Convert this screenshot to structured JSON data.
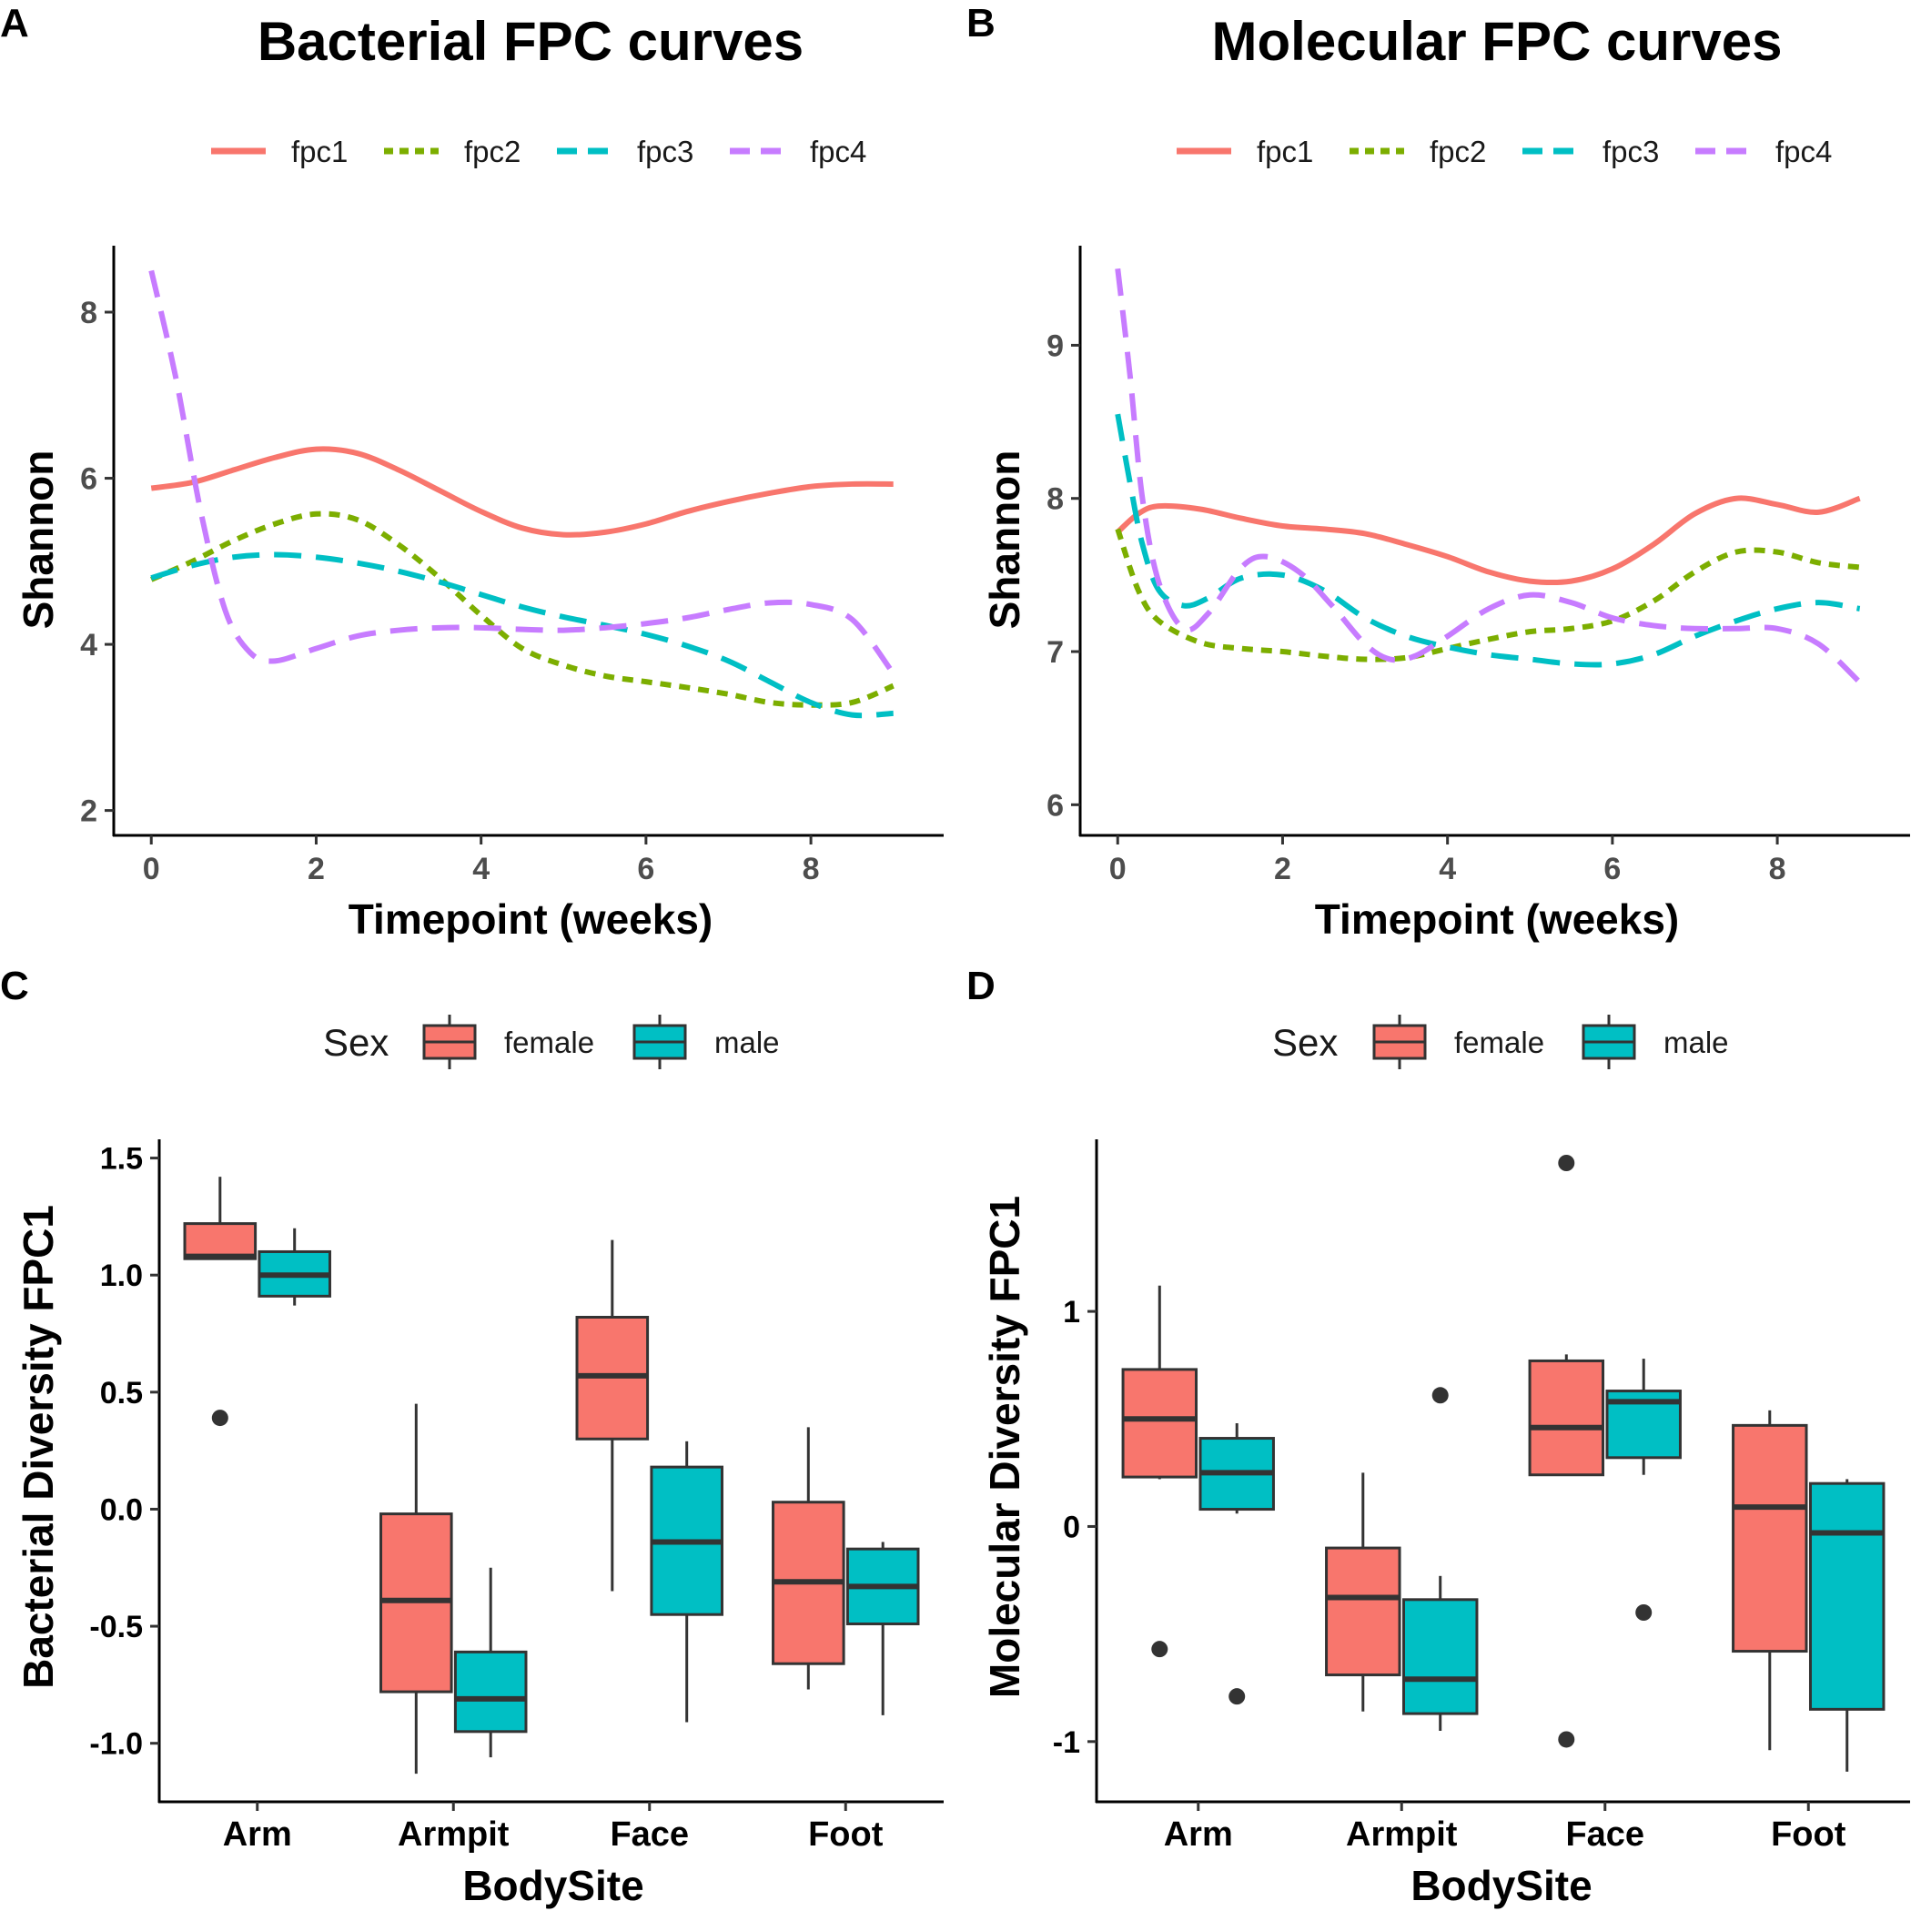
{
  "chart_data": [
    {
      "panel": "A",
      "type": "line",
      "title": "Bacterial FPC curves",
      "xlabel": "Timepoint (weeks)",
      "ylabel": "Shannon",
      "xlim": [
        -0.4,
        9.5
      ],
      "ylim": [
        1.7,
        8.8
      ],
      "xticks": [
        0,
        2,
        4,
        6,
        8
      ],
      "yticks": [
        2,
        4,
        6,
        8
      ],
      "grid": false,
      "legend_position": "top",
      "series": [
        {
          "name": "fpc1",
          "color": "#F8766D",
          "dash": "solid",
          "x": [
            0,
            0.5,
            1,
            1.5,
            2,
            2.5,
            3,
            3.5,
            4,
            4.5,
            5,
            5.5,
            6,
            6.5,
            7,
            7.5,
            8,
            8.5,
            9
          ],
          "y": [
            5.88,
            5.95,
            6.1,
            6.25,
            6.35,
            6.3,
            6.1,
            5.85,
            5.6,
            5.4,
            5.32,
            5.35,
            5.45,
            5.6,
            5.72,
            5.82,
            5.9,
            5.93,
            5.93
          ]
        },
        {
          "name": "fpc2",
          "color": "#7CAE00",
          "dash": "dotted",
          "x": [
            0,
            0.5,
            1,
            1.5,
            2,
            2.5,
            3,
            3.5,
            4,
            4.5,
            5,
            5.5,
            6,
            6.5,
            7,
            7.5,
            8,
            8.5,
            9
          ],
          "y": [
            4.78,
            5.0,
            5.25,
            5.45,
            5.57,
            5.5,
            5.2,
            4.8,
            4.35,
            3.95,
            3.75,
            3.62,
            3.55,
            3.48,
            3.4,
            3.3,
            3.27,
            3.3,
            3.5
          ]
        },
        {
          "name": "fpc3",
          "color": "#00BFC4",
          "dash": "dashed",
          "x": [
            0,
            0.5,
            1,
            1.5,
            2,
            2.5,
            3,
            3.5,
            4,
            4.5,
            5,
            5.5,
            6,
            6.5,
            7,
            7.5,
            8,
            8.5,
            9
          ],
          "y": [
            4.8,
            4.95,
            5.05,
            5.08,
            5.05,
            4.98,
            4.88,
            4.75,
            4.6,
            4.45,
            4.33,
            4.23,
            4.12,
            3.98,
            3.8,
            3.55,
            3.3,
            3.15,
            3.17
          ]
        },
        {
          "name": "fpc4",
          "color": "#C77CFF",
          "dash": "dashed",
          "x": [
            0,
            0.3,
            0.6,
            0.9,
            1.2,
            1.5,
            2,
            2.5,
            3,
            3.5,
            4,
            4.5,
            5,
            5.5,
            6,
            6.5,
            7,
            7.5,
            8,
            8.5,
            9
          ],
          "y": [
            8.5,
            7.2,
            5.6,
            4.4,
            3.9,
            3.8,
            3.95,
            4.1,
            4.17,
            4.2,
            4.2,
            4.18,
            4.17,
            4.2,
            4.25,
            4.32,
            4.42,
            4.5,
            4.48,
            4.3,
            3.65
          ]
        }
      ]
    },
    {
      "panel": "B",
      "type": "line",
      "title": "Molecular FPC curves",
      "xlabel": "Timepoint (weeks)",
      "ylabel": "Shannon",
      "xlim": [
        -0.4,
        9.5
      ],
      "ylim": [
        5.8,
        9.65
      ],
      "xticks": [
        0,
        2,
        4,
        6,
        8
      ],
      "yticks": [
        6,
        7,
        8,
        9
      ],
      "grid": false,
      "legend_position": "top",
      "series": [
        {
          "name": "fpc1",
          "color": "#F8766D",
          "dash": "solid",
          "x": [
            0,
            0.25,
            0.5,
            1,
            1.5,
            2,
            2.5,
            3,
            3.5,
            4,
            4.5,
            5,
            5.5,
            6,
            6.5,
            7,
            7.5,
            8,
            8.5,
            9
          ],
          "y": [
            7.78,
            7.9,
            7.95,
            7.93,
            7.87,
            7.82,
            7.8,
            7.77,
            7.7,
            7.62,
            7.52,
            7.46,
            7.46,
            7.54,
            7.7,
            7.9,
            8.0,
            7.96,
            7.91,
            8.0
          ]
        },
        {
          "name": "fpc2",
          "color": "#7CAE00",
          "dash": "dotted",
          "x": [
            0,
            0.25,
            0.5,
            1,
            1.5,
            2,
            2.5,
            3,
            3.5,
            4,
            4.5,
            5,
            5.5,
            6,
            6.5,
            7,
            7.5,
            8,
            8.5,
            9
          ],
          "y": [
            7.8,
            7.4,
            7.2,
            7.06,
            7.02,
            7.0,
            6.97,
            6.95,
            6.96,
            7.02,
            7.08,
            7.13,
            7.15,
            7.2,
            7.33,
            7.52,
            7.65,
            7.65,
            7.58,
            7.55
          ]
        },
        {
          "name": "fpc3",
          "color": "#00BFC4",
          "dash": "dashed",
          "x": [
            0,
            0.15,
            0.3,
            0.5,
            0.8,
            1.1,
            1.5,
            2,
            2.5,
            3,
            3.5,
            4,
            4.5,
            5,
            5.5,
            6,
            6.5,
            7,
            7.5,
            8,
            8.5,
            9
          ],
          "y": [
            8.55,
            8.1,
            7.7,
            7.4,
            7.3,
            7.35,
            7.48,
            7.5,
            7.4,
            7.22,
            7.1,
            7.03,
            6.98,
            6.95,
            6.92,
            6.92,
            6.98,
            7.1,
            7.2,
            7.28,
            7.32,
            7.28
          ]
        },
        {
          "name": "fpc4",
          "color": "#C77CFF",
          "dash": "dashed",
          "x": [
            0,
            0.15,
            0.3,
            0.5,
            0.8,
            1.1,
            1.5,
            1.8,
            2.2,
            2.6,
            3,
            3.3,
            3.6,
            4,
            4.5,
            5,
            5.5,
            6,
            6.5,
            7,
            7.5,
            8,
            8.5,
            9
          ],
          "y": [
            9.5,
            8.8,
            8.0,
            7.45,
            7.15,
            7.25,
            7.55,
            7.62,
            7.52,
            7.3,
            7.05,
            6.95,
            6.97,
            7.1,
            7.28,
            7.37,
            7.32,
            7.22,
            7.17,
            7.15,
            7.15,
            7.15,
            7.05,
            6.8
          ]
        }
      ]
    },
    {
      "panel": "C",
      "type": "box",
      "xlabel": "BodySite",
      "ylabel": "Bacterial Diversity FPC1",
      "categories": [
        "Arm",
        "Armpit",
        "Face",
        "Foot"
      ],
      "ylim": [
        -1.25,
        1.58
      ],
      "yticks": [
        1.5,
        1.0,
        0.5,
        0.0,
        -0.5,
        -1.0
      ],
      "yticklabels": [
        "1.5",
        "1.0",
        "0.5",
        "0.0",
        "-0.5",
        "-1.0"
      ],
      "legend_title": "Sex",
      "legend_position": "top",
      "groups": [
        {
          "name": "female",
          "color": "#F8766D"
        },
        {
          "name": "male",
          "color": "#00BFC4"
        }
      ],
      "boxes": [
        {
          "category": "Arm",
          "group": "female",
          "min": 1.07,
          "q1": 1.07,
          "median": 1.08,
          "q3": 1.22,
          "max": 1.42,
          "outliers": [
            0.39
          ]
        },
        {
          "category": "Arm",
          "group": "male",
          "min": 0.87,
          "q1": 0.91,
          "median": 1.0,
          "q3": 1.1,
          "max": 1.2,
          "outliers": []
        },
        {
          "category": "Armpit",
          "group": "female",
          "min": -1.13,
          "q1": -0.78,
          "median": -0.39,
          "q3": -0.02,
          "max": 0.45,
          "outliers": []
        },
        {
          "category": "Armpit",
          "group": "male",
          "min": -1.06,
          "q1": -0.95,
          "median": -0.81,
          "q3": -0.61,
          "max": -0.25,
          "outliers": []
        },
        {
          "category": "Face",
          "group": "female",
          "min": -0.35,
          "q1": 0.3,
          "median": 0.57,
          "q3": 0.82,
          "max": 1.15,
          "outliers": []
        },
        {
          "category": "Face",
          "group": "male",
          "min": -0.91,
          "q1": -0.45,
          "median": -0.14,
          "q3": 0.18,
          "max": 0.29,
          "outliers": []
        },
        {
          "category": "Foot",
          "group": "female",
          "min": -0.77,
          "q1": -0.66,
          "median": -0.31,
          "q3": 0.03,
          "max": 0.35,
          "outliers": []
        },
        {
          "category": "Foot",
          "group": "male",
          "min": -0.88,
          "q1": -0.49,
          "median": -0.33,
          "q3": -0.17,
          "max": -0.14,
          "outliers": []
        }
      ]
    },
    {
      "panel": "D",
      "type": "box",
      "xlabel": "BodySite",
      "ylabel": "Molecular Diversity FPC1",
      "categories": [
        "Arm",
        "Armpit",
        "Face",
        "Foot"
      ],
      "ylim": [
        -1.28,
        1.8
      ],
      "yticks": [
        1,
        0,
        -1
      ],
      "yticklabels": [
        "1",
        "0",
        "-1"
      ],
      "legend_title": "Sex",
      "legend_position": "top",
      "groups": [
        {
          "name": "female",
          "color": "#F8766D"
        },
        {
          "name": "male",
          "color": "#00BFC4"
        }
      ],
      "boxes": [
        {
          "category": "Arm",
          "group": "female",
          "min": 0.22,
          "q1": 0.23,
          "median": 0.5,
          "q3": 0.73,
          "max": 1.12,
          "outliers": [
            -0.57
          ]
        },
        {
          "category": "Arm",
          "group": "male",
          "min": 0.06,
          "q1": 0.08,
          "median": 0.25,
          "q3": 0.41,
          "max": 0.48,
          "outliers": [
            -0.79
          ]
        },
        {
          "category": "Armpit",
          "group": "female",
          "min": -0.86,
          "q1": -0.69,
          "median": -0.33,
          "q3": -0.1,
          "max": 0.25,
          "outliers": []
        },
        {
          "category": "Armpit",
          "group": "male",
          "min": -0.95,
          "q1": -0.87,
          "median": -0.71,
          "q3": -0.34,
          "max": -0.23,
          "outliers": [
            0.61
          ]
        },
        {
          "category": "Face",
          "group": "female",
          "min": 0.24,
          "q1": 0.24,
          "median": 0.46,
          "q3": 0.77,
          "max": 0.8,
          "outliers": [
            1.69,
            -0.99
          ]
        },
        {
          "category": "Face",
          "group": "male",
          "min": 0.24,
          "q1": 0.32,
          "median": 0.58,
          "q3": 0.63,
          "max": 0.78,
          "outliers": [
            -0.4
          ]
        },
        {
          "category": "Foot",
          "group": "female",
          "min": -1.04,
          "q1": -0.58,
          "median": 0.09,
          "q3": 0.47,
          "max": 0.54,
          "outliers": []
        },
        {
          "category": "Foot",
          "group": "male",
          "min": -1.14,
          "q1": -0.85,
          "median": -0.03,
          "q3": 0.2,
          "max": 0.22,
          "outliers": []
        }
      ]
    }
  ]
}
